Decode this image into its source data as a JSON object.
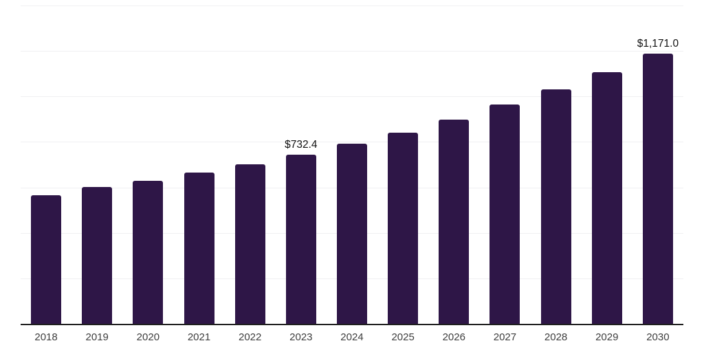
{
  "page": {
    "background": "#ffffff"
  },
  "chart_data": {
    "type": "bar",
    "title": "",
    "xlabel": "",
    "ylabel": "",
    "categories": [
      "2018",
      "2019",
      "2020",
      "2021",
      "2022",
      "2023",
      "2024",
      "2025",
      "2026",
      "2027",
      "2028",
      "2029",
      "2030"
    ],
    "values": [
      556.8,
      591.5,
      620.0,
      655.0,
      690.7,
      732.4,
      779.0,
      826.6,
      884.2,
      948.8,
      1015.2,
      1088.2,
      1171.0
    ],
    "point_labels": [
      "",
      "",
      "",
      "",
      "",
      "$732.4",
      "",
      "",
      "",
      "",
      "",
      "",
      "$1,171.0"
    ],
    "ylim": [
      0,
      1378
    ],
    "y_axis_labels_visible": false,
    "grid": true,
    "gridline_count": 7,
    "legend": false,
    "colors": {
      "bar": "#2E1647",
      "gridline": "#F0F0F2",
      "axis": "#1F1F1F",
      "tick_label": "#3D3D3D",
      "point_label": "#111111"
    }
  }
}
